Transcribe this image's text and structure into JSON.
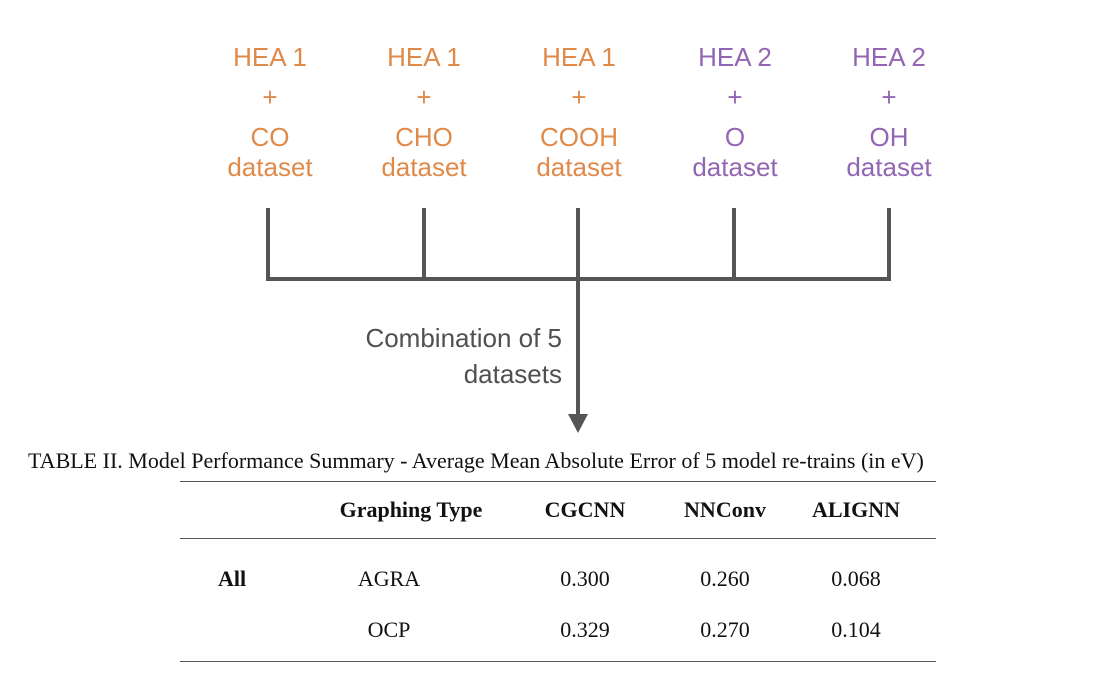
{
  "datasets": [
    {
      "hea": "HEA 1",
      "plus": "+",
      "adsorbate": "CO",
      "suffix": "dataset",
      "color": "#E08A4A"
    },
    {
      "hea": "HEA 1",
      "plus": "+",
      "adsorbate": "CHO",
      "suffix": "dataset",
      "color": "#E08A4A"
    },
    {
      "hea": "HEA 1",
      "plus": "+",
      "adsorbate": "COOH",
      "suffix": "dataset",
      "color": "#E08A4A"
    },
    {
      "hea": "HEA 2",
      "plus": "+",
      "adsorbate": "O",
      "suffix": "dataset",
      "color": "#9266B4"
    },
    {
      "hea": "HEA 2",
      "plus": "+",
      "adsorbate": "OH",
      "suffix": "dataset",
      "color": "#9266B4"
    }
  ],
  "combination": {
    "line1": "Combination of 5",
    "line2": "datasets"
  },
  "connector_color": "#555555",
  "table": {
    "caption": "TABLE II.  Model Performance Summary - Average Mean Absolute Error of 5 model re-trains (in eV)",
    "headers": [
      "",
      "Graphing Type",
      "CGCNN",
      "NNConv",
      "ALIGNN"
    ],
    "rows": [
      [
        "All",
        "AGRA",
        "0.300",
        "0.260",
        "0.068"
      ],
      [
        "",
        "OCP",
        "0.329",
        "0.270",
        "0.104"
      ]
    ]
  }
}
